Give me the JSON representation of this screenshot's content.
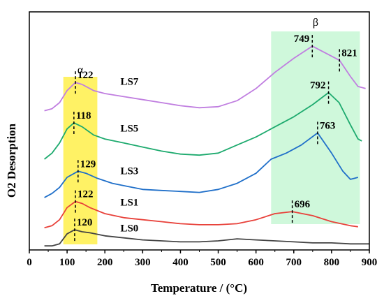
{
  "chart_data": {
    "type": "line",
    "title": "",
    "xlabel": "Temperature / (°C)",
    "ylabel": "O2 Desorption",
    "xlim": [
      0,
      900
    ],
    "xticks": [
      0,
      100,
      200,
      300,
      400,
      500,
      600,
      700,
      800,
      900
    ],
    "grid": false,
    "legend": "none",
    "regions": [
      {
        "label": "α",
        "x": [
          90,
          180
        ],
        "color": "#fff04a"
      },
      {
        "label": "β",
        "x": [
          640,
          875
        ],
        "color": "#bff5cf"
      }
    ],
    "series": [
      {
        "name": "LS0",
        "color": "#444444",
        "x": [
          40,
          60,
          80,
          100,
          120,
          140,
          160,
          200,
          250,
          300,
          350,
          400,
          450,
          500,
          550,
          600,
          650,
          700,
          750,
          800,
          850,
          900
        ],
        "y": [
          0.2,
          0.2,
          0.3,
          0.8,
          1.0,
          0.9,
          0.85,
          0.7,
          0.6,
          0.5,
          0.45,
          0.4,
          0.4,
          0.45,
          0.55,
          0.5,
          0.45,
          0.4,
          0.35,
          0.35,
          0.3,
          0.3
        ],
        "peaks": [
          {
            "x": 120,
            "label": "120"
          }
        ]
      },
      {
        "name": "LS1",
        "color": "#e8413a",
        "x": [
          40,
          60,
          80,
          100,
          122,
          140,
          160,
          200,
          250,
          300,
          350,
          400,
          450,
          500,
          550,
          600,
          650,
          696,
          750,
          800,
          850,
          870
        ],
        "y": [
          1.1,
          1.2,
          1.5,
          2.1,
          2.4,
          2.3,
          2.1,
          1.8,
          1.6,
          1.5,
          1.4,
          1.3,
          1.25,
          1.25,
          1.3,
          1.5,
          1.8,
          1.9,
          1.7,
          1.4,
          1.2,
          1.15
        ],
        "peaks": [
          {
            "x": 122,
            "label": "122"
          },
          {
            "x": 696,
            "label": "696"
          }
        ]
      },
      {
        "name": "LS3",
        "color": "#1f6fc9",
        "x": [
          40,
          60,
          80,
          100,
          129,
          150,
          180,
          220,
          260,
          300,
          350,
          400,
          450,
          500,
          550,
          600,
          640,
          680,
          720,
          763,
          800,
          830,
          850,
          870
        ],
        "y": [
          2.6,
          2.8,
          3.1,
          3.6,
          3.9,
          3.8,
          3.55,
          3.3,
          3.15,
          3.0,
          2.95,
          2.9,
          2.85,
          3.0,
          3.3,
          3.8,
          4.5,
          4.8,
          5.2,
          5.8,
          4.8,
          3.9,
          3.5,
          3.6
        ],
        "peaks": [
          {
            "x": 129,
            "label": "129"
          },
          {
            "x": 763,
            "label": "763"
          }
        ]
      },
      {
        "name": "LS5",
        "color": "#1daa6e",
        "x": [
          40,
          60,
          80,
          100,
          118,
          140,
          170,
          200,
          250,
          300,
          350,
          400,
          450,
          500,
          550,
          600,
          650,
          700,
          750,
          792,
          820,
          850,
          870,
          880
        ],
        "y": [
          4.5,
          4.8,
          5.3,
          6.0,
          6.3,
          6.1,
          5.7,
          5.5,
          5.3,
          5.1,
          4.9,
          4.75,
          4.7,
          4.8,
          5.2,
          5.6,
          6.1,
          6.6,
          7.2,
          7.8,
          7.3,
          6.2,
          5.5,
          5.4
        ],
        "peaks": [
          {
            "x": 118,
            "label": "118"
          },
          {
            "x": 792,
            "label": "792"
          }
        ]
      },
      {
        "name": "LS7",
        "color": "#c07ee0",
        "x": [
          40,
          60,
          80,
          100,
          122,
          140,
          170,
          200,
          250,
          300,
          350,
          400,
          450,
          500,
          550,
          600,
          650,
          700,
          749,
          780,
          821,
          850,
          870,
          890
        ],
        "y": [
          6.9,
          7.0,
          7.3,
          7.9,
          8.3,
          8.2,
          7.9,
          7.75,
          7.6,
          7.45,
          7.3,
          7.15,
          7.05,
          7.1,
          7.4,
          8.0,
          8.8,
          9.5,
          10.1,
          9.8,
          9.4,
          8.6,
          8.1,
          8.0
        ],
        "peaks": [
          {
            "x": 122,
            "label": "122"
          },
          {
            "x": 749,
            "label": "749"
          },
          {
            "x": 821,
            "label": "821"
          }
        ]
      }
    ]
  }
}
